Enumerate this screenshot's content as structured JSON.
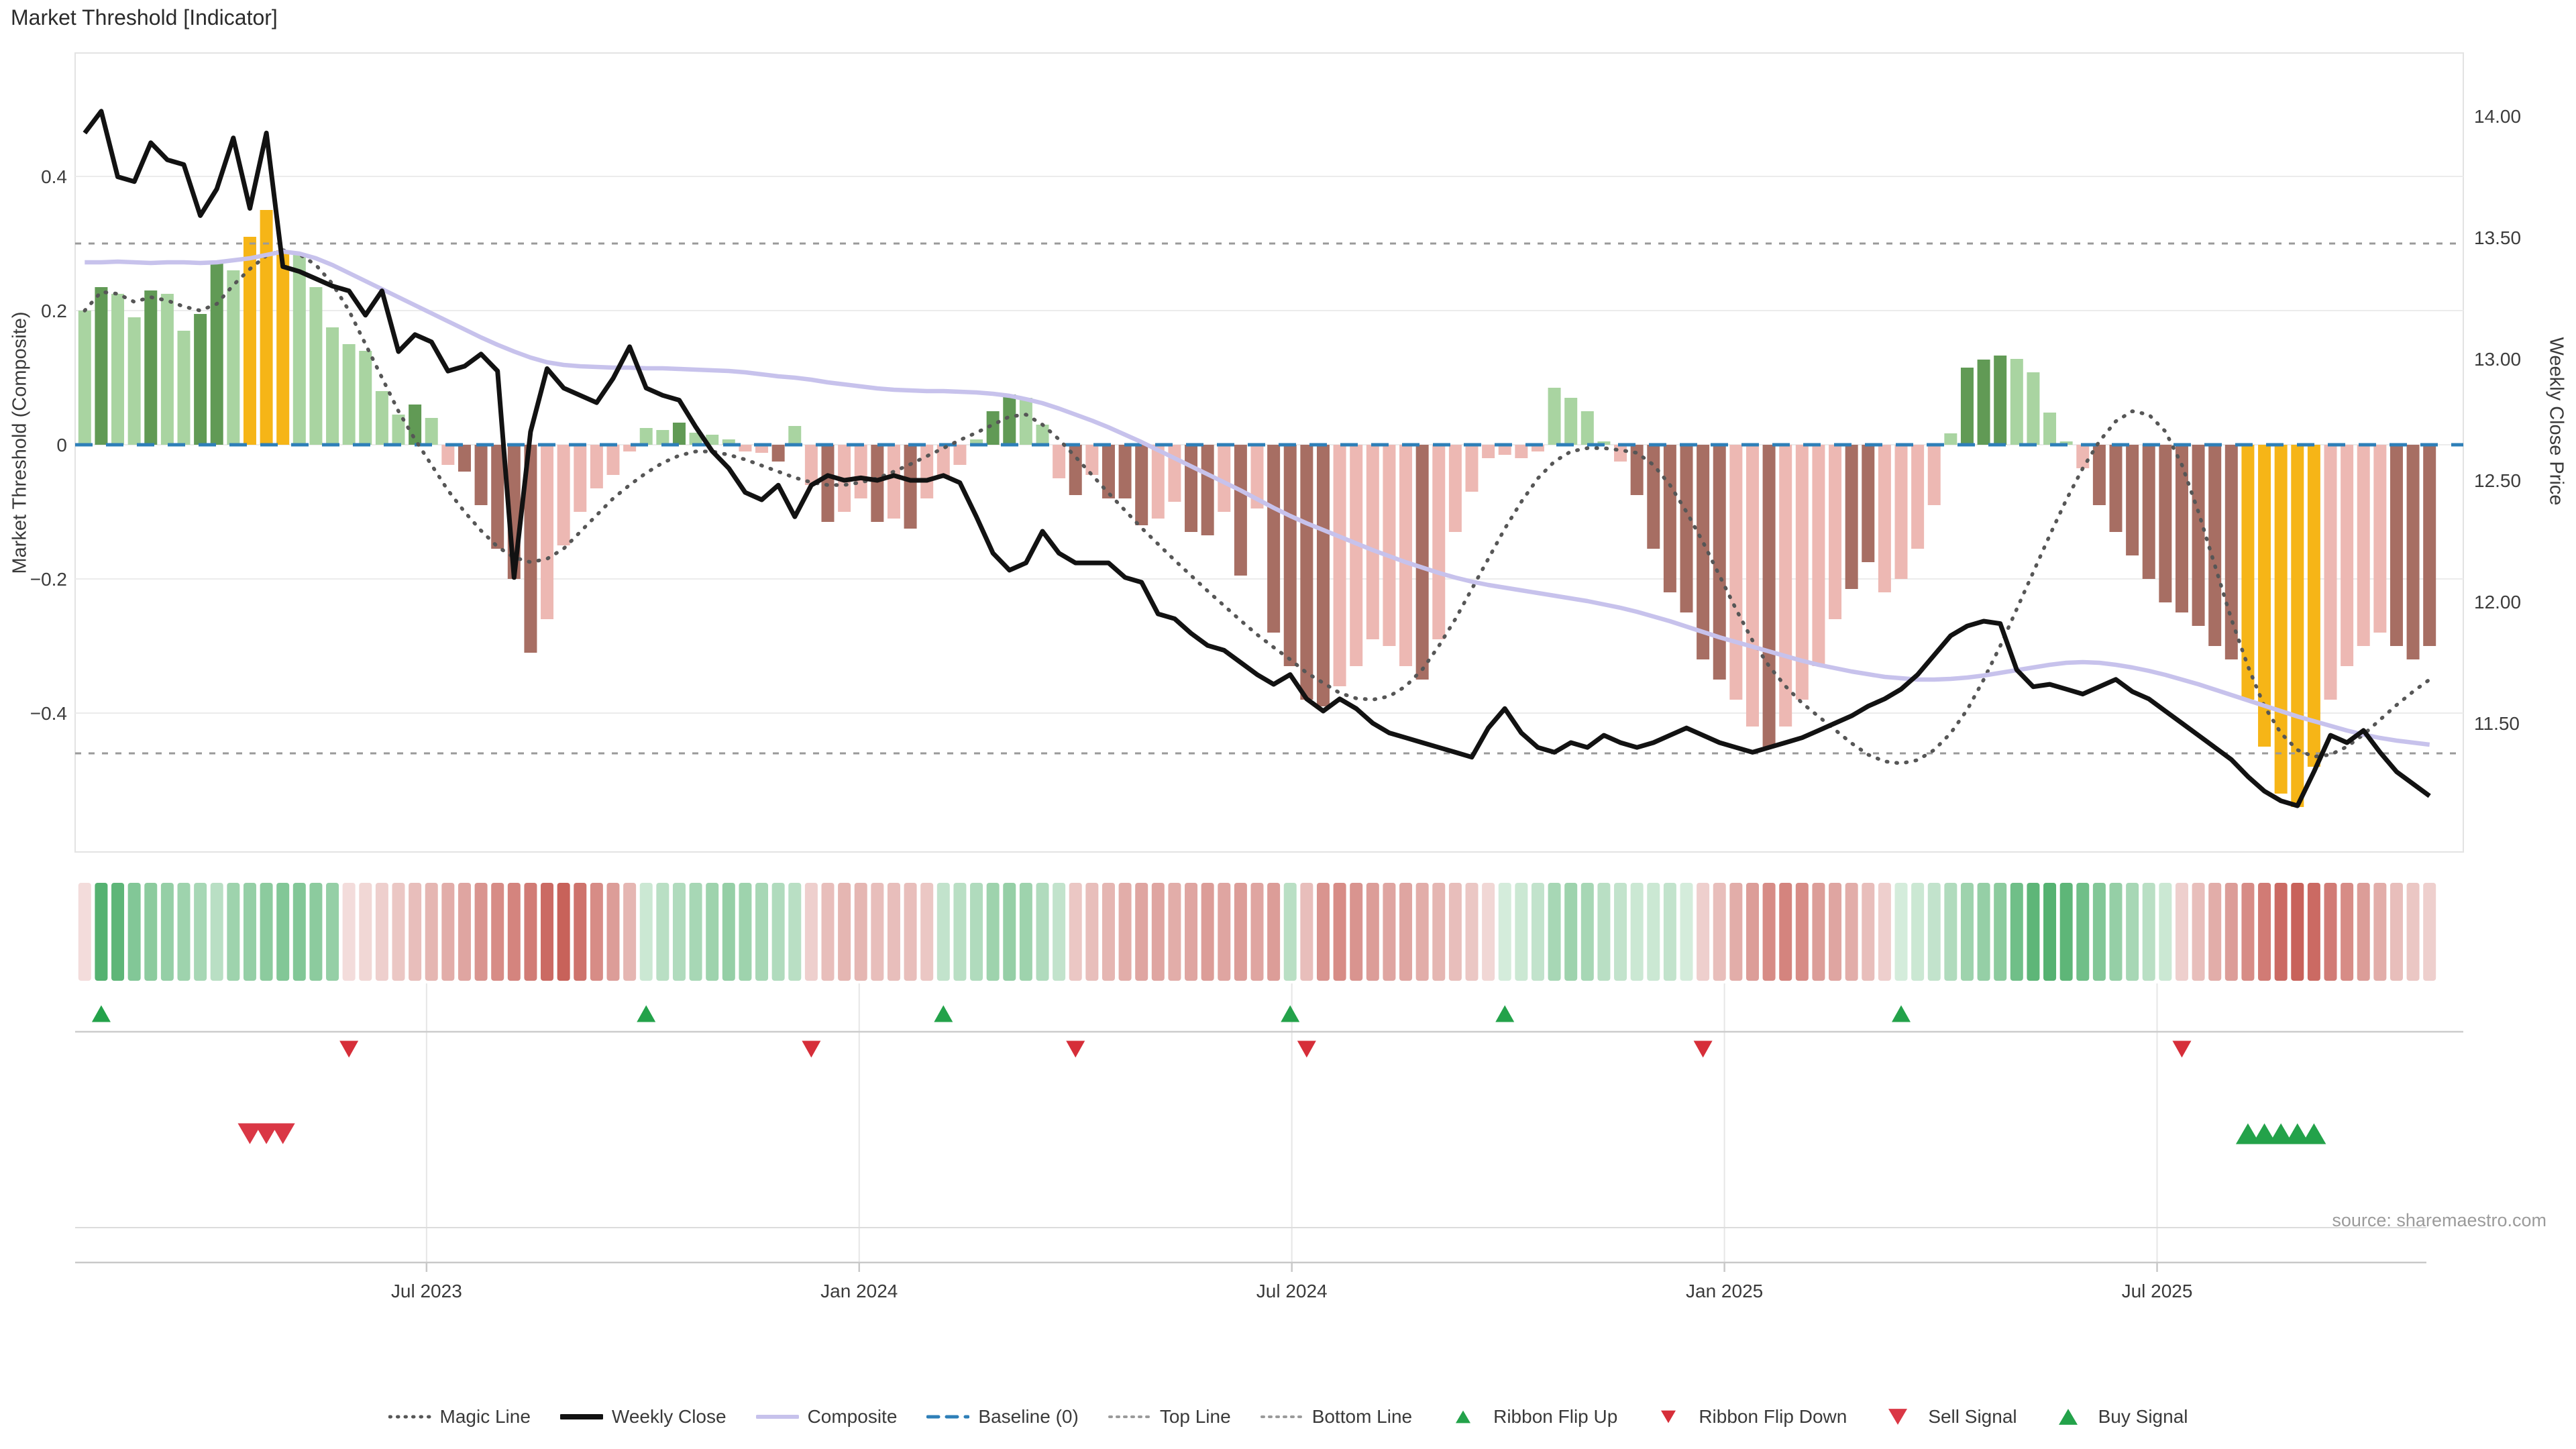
{
  "title": "Market Threshold [Indicator]",
  "source": "source: sharemaestro.com",
  "axes": {
    "left": {
      "label": "Market Threshold (Composite)",
      "tick_labels": [
        "0.4",
        "0.2",
        "0",
        "−0.2",
        "−0.4"
      ],
      "tick_values": [
        0.4,
        0.2,
        0,
        -0.2,
        -0.4
      ]
    },
    "right": {
      "label": "Weekly Close Price",
      "tick_labels": [
        "14.00",
        "13.50",
        "13.00",
        "12.50",
        "12.00",
        "11.50"
      ],
      "tick_values": [
        14.0,
        13.5,
        13.0,
        12.5,
        12.0,
        11.5
      ]
    },
    "x": {
      "tick_labels": [
        "Jul 2023",
        "Jan 2024",
        "Jul 2024",
        "Jan 2025",
        "Jul 2025"
      ],
      "tick_weeks": [
        20.7,
        46.9,
        73.1,
        99.3,
        125.5
      ]
    }
  },
  "colors": {
    "bar_light_green": "#a9d4a1",
    "bar_dark_green": "#619a55",
    "bar_gold": "#f6b517",
    "bar_pink": "#edb8b3",
    "bar_dark_red": "#a76e63",
    "weekly_close": "#121212",
    "composite": "#c7c2ec",
    "magic": "#565656",
    "baseline": "#2e7fb8",
    "top_bottom_line": "#9a9a9a",
    "grid": "#ececec",
    "flip_up_green": "#23a24a",
    "flip_down_red": "#d62e39",
    "sell_red": "#da3745",
    "buy_green": "#23a24a",
    "ribbon_green_max": "#3aa65a",
    "ribbon_red_max": "#bf4940"
  },
  "chart_data": {
    "type": "combo-bar-line",
    "n_weeks": 143,
    "title": "Market Threshold [Indicator]",
    "ylabel_left": "Market Threshold (Composite)",
    "ylabel_right": "Weekly Close Price",
    "ylim_left": [
      -0.607,
      0.584
    ],
    "ylim_right": [
      10.97,
      14.26
    ],
    "baseline": 0,
    "top_line": 0.3,
    "bottom_line": -0.46,
    "grid": "horizontal-left-ticks",
    "legend_position": "bottom-center",
    "bars": {
      "name": "Market Threshold (Composite)",
      "values": [
        0.2,
        0.235,
        0.225,
        0.19,
        0.23,
        0.225,
        0.17,
        0.195,
        0.27,
        0.26,
        0.31,
        0.35,
        0.29,
        0.285,
        0.235,
        0.175,
        0.15,
        0.14,
        0.08,
        0.045,
        0.06,
        0.04,
        -0.03,
        -0.04,
        -0.09,
        -0.155,
        -0.2,
        -0.31,
        -0.26,
        -0.15,
        -0.1,
        -0.065,
        -0.045,
        -0.01,
        0.025,
        0.022,
        0.033,
        0.018,
        0.015,
        0.008,
        -0.01,
        -0.012,
        -0.025,
        0.028,
        -0.06,
        -0.115,
        -0.1,
        -0.08,
        -0.115,
        -0.11,
        -0.125,
        -0.08,
        -0.05,
        -0.03,
        0.008,
        0.05,
        0.075,
        0.07,
        0.03,
        -0.05,
        -0.075,
        -0.045,
        -0.08,
        -0.08,
        -0.12,
        -0.11,
        -0.085,
        -0.13,
        -0.135,
        -0.1,
        -0.195,
        -0.095,
        -0.28,
        -0.33,
        -0.38,
        -0.39,
        -0.36,
        -0.33,
        -0.29,
        -0.3,
        -0.33,
        -0.35,
        -0.29,
        -0.13,
        -0.07,
        -0.02,
        -0.015,
        -0.02,
        -0.01,
        0.085,
        0.07,
        0.05,
        0.005,
        -0.025,
        -0.075,
        -0.155,
        -0.22,
        -0.25,
        -0.32,
        -0.35,
        -0.38,
        -0.42,
        -0.45,
        -0.42,
        -0.38,
        -0.33,
        -0.26,
        -0.215,
        -0.175,
        -0.22,
        -0.2,
        -0.155,
        -0.09,
        0.017,
        0.115,
        0.127,
        0.133,
        0.128,
        0.108,
        0.048,
        0.005,
        -0.035,
        -0.09,
        -0.13,
        -0.165,
        -0.2,
        -0.235,
        -0.25,
        -0.27,
        -0.3,
        -0.32,
        -0.38,
        -0.45,
        -0.52,
        -0.54,
        -0.48,
        -0.38,
        -0.33,
        -0.3,
        -0.28,
        -0.3,
        -0.32,
        -0.3
      ],
      "color_codes": [
        "L",
        "D",
        "L",
        "L",
        "D",
        "L",
        "L",
        "D",
        "D",
        "L",
        "G",
        "G",
        "G",
        "L",
        "L",
        "L",
        "L",
        "L",
        "L",
        "L",
        "D",
        "L",
        "P",
        "R",
        "R",
        "R",
        "R",
        "R",
        "P",
        "P",
        "P",
        "P",
        "P",
        "P",
        "L",
        "L",
        "D",
        "L",
        "L",
        "L",
        "P",
        "P",
        "R",
        "L",
        "P",
        "R",
        "P",
        "P",
        "R",
        "P",
        "R",
        "P",
        "P",
        "P",
        "L",
        "D",
        "D",
        "L",
        "L",
        "P",
        "R",
        "P",
        "R",
        "R",
        "R",
        "P",
        "P",
        "R",
        "R",
        "P",
        "R",
        "P",
        "R",
        "R",
        "R",
        "R",
        "P",
        "P",
        "P",
        "P",
        "P",
        "R",
        "P",
        "P",
        "P",
        "P",
        "P",
        "P",
        "P",
        "L",
        "L",
        "L",
        "L",
        "P",
        "R",
        "R",
        "R",
        "R",
        "R",
        "R",
        "P",
        "P",
        "R",
        "P",
        "P",
        "P",
        "P",
        "R",
        "R",
        "P",
        "P",
        "P",
        "P",
        "L",
        "D",
        "D",
        "D",
        "L",
        "L",
        "L",
        "L",
        "P",
        "R",
        "R",
        "R",
        "R",
        "R",
        "R",
        "R",
        "R",
        "R",
        "G",
        "G",
        "G",
        "G",
        "G",
        "P",
        "P",
        "P",
        "P",
        "R",
        "R",
        "R"
      ]
    },
    "series": [
      {
        "name": "Magic Line",
        "axis": "left",
        "style": "dotted",
        "values": [
          0.2,
          0.228,
          0.225,
          0.213,
          0.22,
          0.215,
          0.206,
          0.2,
          0.21,
          0.238,
          0.262,
          0.282,
          0.29,
          0.284,
          0.268,
          0.24,
          0.2,
          0.15,
          0.1,
          0.05,
          0.008,
          -0.03,
          -0.068,
          -0.1,
          -0.128,
          -0.152,
          -0.168,
          -0.175,
          -0.17,
          -0.155,
          -0.13,
          -0.105,
          -0.08,
          -0.06,
          -0.042,
          -0.027,
          -0.016,
          -0.01,
          -0.01,
          -0.015,
          -0.022,
          -0.031,
          -0.04,
          -0.049,
          -0.056,
          -0.06,
          -0.06,
          -0.056,
          -0.05,
          -0.04,
          -0.029,
          -0.017,
          -0.005,
          0.007,
          0.018,
          0.03,
          0.042,
          0.045,
          0.03,
          0.008,
          -0.018,
          -0.045,
          -0.072,
          -0.098,
          -0.124,
          -0.148,
          -0.172,
          -0.195,
          -0.218,
          -0.24,
          -0.262,
          -0.283,
          -0.302,
          -0.32,
          -0.34,
          -0.355,
          -0.37,
          -0.378,
          -0.38,
          -0.375,
          -0.36,
          -0.335,
          -0.3,
          -0.26,
          -0.215,
          -0.17,
          -0.125,
          -0.085,
          -0.05,
          -0.025,
          -0.01,
          -0.005,
          -0.005,
          -0.008,
          -0.012,
          -0.03,
          -0.06,
          -0.1,
          -0.145,
          -0.195,
          -0.245,
          -0.292,
          -0.33,
          -0.36,
          -0.385,
          -0.405,
          -0.425,
          -0.445,
          -0.462,
          -0.472,
          -0.475,
          -0.47,
          -0.455,
          -0.43,
          -0.395,
          -0.35,
          -0.3,
          -0.245,
          -0.19,
          -0.135,
          -0.082,
          -0.035,
          0.005,
          0.035,
          0.05,
          0.045,
          0.02,
          -0.03,
          -0.1,
          -0.18,
          -0.26,
          -0.33,
          -0.39,
          -0.43,
          -0.455,
          -0.465,
          -0.462,
          -0.45,
          -0.432,
          -0.41,
          -0.388,
          -0.368,
          -0.35
        ]
      },
      {
        "name": "Composite",
        "axis": "left",
        "style": "solid",
        "values": [
          0.272,
          0.272,
          0.273,
          0.272,
          0.271,
          0.272,
          0.272,
          0.271,
          0.272,
          0.275,
          0.278,
          0.283,
          0.288,
          0.285,
          0.278,
          0.268,
          0.256,
          0.244,
          0.232,
          0.22,
          0.208,
          0.196,
          0.184,
          0.172,
          0.16,
          0.149,
          0.139,
          0.13,
          0.123,
          0.119,
          0.117,
          0.116,
          0.115,
          0.115,
          0.114,
          0.114,
          0.113,
          0.112,
          0.111,
          0.11,
          0.108,
          0.105,
          0.102,
          0.1,
          0.097,
          0.093,
          0.09,
          0.087,
          0.084,
          0.082,
          0.081,
          0.08,
          0.08,
          0.079,
          0.078,
          0.076,
          0.073,
          0.068,
          0.062,
          0.054,
          0.045,
          0.036,
          0.026,
          0.015,
          0.004,
          -0.008,
          -0.02,
          -0.032,
          -0.044,
          -0.056,
          -0.068,
          -0.081,
          -0.094,
          -0.106,
          -0.117,
          -0.127,
          -0.137,
          -0.147,
          -0.157,
          -0.166,
          -0.175,
          -0.183,
          -0.191,
          -0.198,
          -0.204,
          -0.209,
          -0.213,
          -0.217,
          -0.221,
          -0.225,
          -0.229,
          -0.233,
          -0.238,
          -0.243,
          -0.249,
          -0.256,
          -0.263,
          -0.271,
          -0.279,
          -0.287,
          -0.294,
          -0.301,
          -0.308,
          -0.315,
          -0.322,
          -0.328,
          -0.333,
          -0.338,
          -0.342,
          -0.346,
          -0.348,
          -0.35,
          -0.35,
          -0.349,
          -0.347,
          -0.344,
          -0.34,
          -0.336,
          -0.332,
          -0.328,
          -0.325,
          -0.324,
          -0.325,
          -0.328,
          -0.332,
          -0.337,
          -0.343,
          -0.35,
          -0.357,
          -0.365,
          -0.373,
          -0.381,
          -0.389,
          -0.397,
          -0.405,
          -0.412,
          -0.419,
          -0.426,
          -0.432,
          -0.437,
          -0.441,
          -0.444,
          -0.447
        ]
      },
      {
        "name": "Weekly Close",
        "axis": "right",
        "style": "solid",
        "values": [
          13.93,
          14.02,
          13.75,
          13.73,
          13.89,
          13.82,
          13.8,
          13.59,
          13.7,
          13.91,
          13.62,
          13.93,
          13.38,
          13.36,
          13.33,
          13.3,
          13.28,
          13.18,
          13.28,
          13.03,
          13.1,
          13.07,
          12.95,
          12.97,
          13.02,
          12.95,
          12.1,
          12.7,
          12.96,
          12.88,
          12.85,
          12.82,
          12.92,
          13.05,
          12.88,
          12.85,
          12.83,
          12.72,
          12.62,
          12.55,
          12.45,
          12.42,
          12.48,
          12.35,
          12.48,
          12.52,
          12.5,
          12.51,
          12.5,
          12.52,
          12.5,
          12.5,
          12.52,
          12.49,
          12.35,
          12.2,
          12.13,
          12.16,
          12.29,
          12.2,
          12.16,
          12.16,
          12.16,
          12.1,
          12.08,
          11.95,
          11.93,
          11.87,
          11.82,
          11.8,
          11.75,
          11.7,
          11.66,
          11.7,
          11.6,
          11.55,
          11.6,
          11.56,
          11.5,
          11.46,
          11.44,
          11.42,
          11.4,
          11.38,
          11.36,
          11.48,
          11.56,
          11.46,
          11.4,
          11.38,
          11.42,
          11.4,
          11.45,
          11.42,
          11.4,
          11.42,
          11.45,
          11.48,
          11.45,
          11.42,
          11.4,
          11.38,
          11.4,
          11.42,
          11.44,
          11.47,
          11.5,
          11.53,
          11.57,
          11.6,
          11.64,
          11.7,
          11.78,
          11.86,
          11.9,
          11.92,
          11.91,
          11.72,
          11.65,
          11.66,
          11.64,
          11.62,
          11.65,
          11.68,
          11.63,
          11.6,
          11.55,
          11.5,
          11.45,
          11.4,
          11.35,
          11.28,
          11.22,
          11.18,
          11.16,
          11.3,
          11.45,
          11.42,
          11.47,
          11.38,
          11.3,
          11.25,
          11.2
        ]
      }
    ],
    "ribbon": {
      "name": "Ribbon",
      "values": [
        -0.12,
        0.85,
        0.8,
        0.6,
        0.55,
        0.5,
        0.45,
        0.4,
        0.3,
        0.45,
        0.5,
        0.55,
        0.6,
        0.6,
        0.55,
        0.5,
        -0.12,
        -0.15,
        -0.2,
        -0.25,
        -0.3,
        -0.35,
        -0.4,
        -0.45,
        -0.55,
        -0.6,
        -0.65,
        -0.7,
        -0.8,
        -0.85,
        -0.75,
        -0.6,
        -0.5,
        -0.35,
        0.2,
        0.3,
        0.35,
        0.4,
        0.45,
        0.5,
        0.45,
        0.4,
        0.35,
        0.3,
        -0.2,
        -0.3,
        -0.35,
        -0.35,
        -0.3,
        -0.3,
        -0.3,
        -0.25,
        0.25,
        0.3,
        0.35,
        0.45,
        0.5,
        0.45,
        0.35,
        0.25,
        -0.25,
        -0.3,
        -0.35,
        -0.4,
        -0.45,
        -0.45,
        -0.4,
        -0.45,
        -0.5,
        -0.45,
        -0.5,
        -0.45,
        -0.5,
        0.3,
        -0.3,
        -0.55,
        -0.6,
        -0.55,
        -0.5,
        -0.45,
        -0.45,
        -0.4,
        -0.35,
        -0.3,
        -0.25,
        -0.15,
        0.15,
        0.2,
        0.25,
        0.4,
        0.45,
        0.4,
        0.3,
        0.25,
        0.2,
        0.2,
        0.25,
        0.15,
        -0.2,
        -0.3,
        -0.4,
        -0.5,
        -0.6,
        -0.65,
        -0.6,
        -0.5,
        -0.45,
        -0.4,
        -0.3,
        -0.2,
        0.15,
        0.2,
        0.25,
        0.35,
        0.45,
        0.5,
        0.55,
        0.7,
        0.8,
        0.85,
        0.8,
        0.7,
        0.6,
        0.5,
        0.4,
        0.3,
        0.2,
        -0.2,
        -0.3,
        -0.4,
        -0.5,
        -0.6,
        -0.7,
        -0.8,
        -0.85,
        -0.8,
        -0.7,
        -0.6,
        -0.5,
        -0.4,
        -0.3,
        -0.25,
        -0.2
      ]
    },
    "signals": {
      "ribbon_flip_up_weeks": [
        1,
        34,
        52,
        73,
        86,
        110
      ],
      "ribbon_flip_down_weeks": [
        16,
        44,
        60,
        74,
        98,
        127
      ],
      "sell_signal_weeks": [
        10,
        11,
        12
      ],
      "buy_signal_weeks": [
        131,
        132,
        133,
        134,
        135
      ]
    }
  },
  "legend": [
    {
      "label": "Magic Line",
      "type": "dotted",
      "color": "#565656"
    },
    {
      "label": "Weekly Close",
      "type": "solid-thick",
      "color": "#121212"
    },
    {
      "label": "Composite",
      "type": "solid",
      "color": "#c7c2ec"
    },
    {
      "label": "Baseline (0)",
      "type": "dashed",
      "color": "#2e7fb8"
    },
    {
      "label": "Top Line",
      "type": "dotted-fine",
      "color": "#9a9a9a"
    },
    {
      "label": "Bottom Line",
      "type": "dotted-fine",
      "color": "#9a9a9a"
    },
    {
      "label": "Ribbon Flip Up",
      "type": "triangle-up",
      "color": "#23a24a"
    },
    {
      "label": "Ribbon Flip Down",
      "type": "triangle-down",
      "color": "#d62e39"
    },
    {
      "label": "Sell Signal",
      "type": "triangle-down-big",
      "color": "#da3745"
    },
    {
      "label": "Buy Signal",
      "type": "triangle-up-big",
      "color": "#23a24a"
    }
  ]
}
